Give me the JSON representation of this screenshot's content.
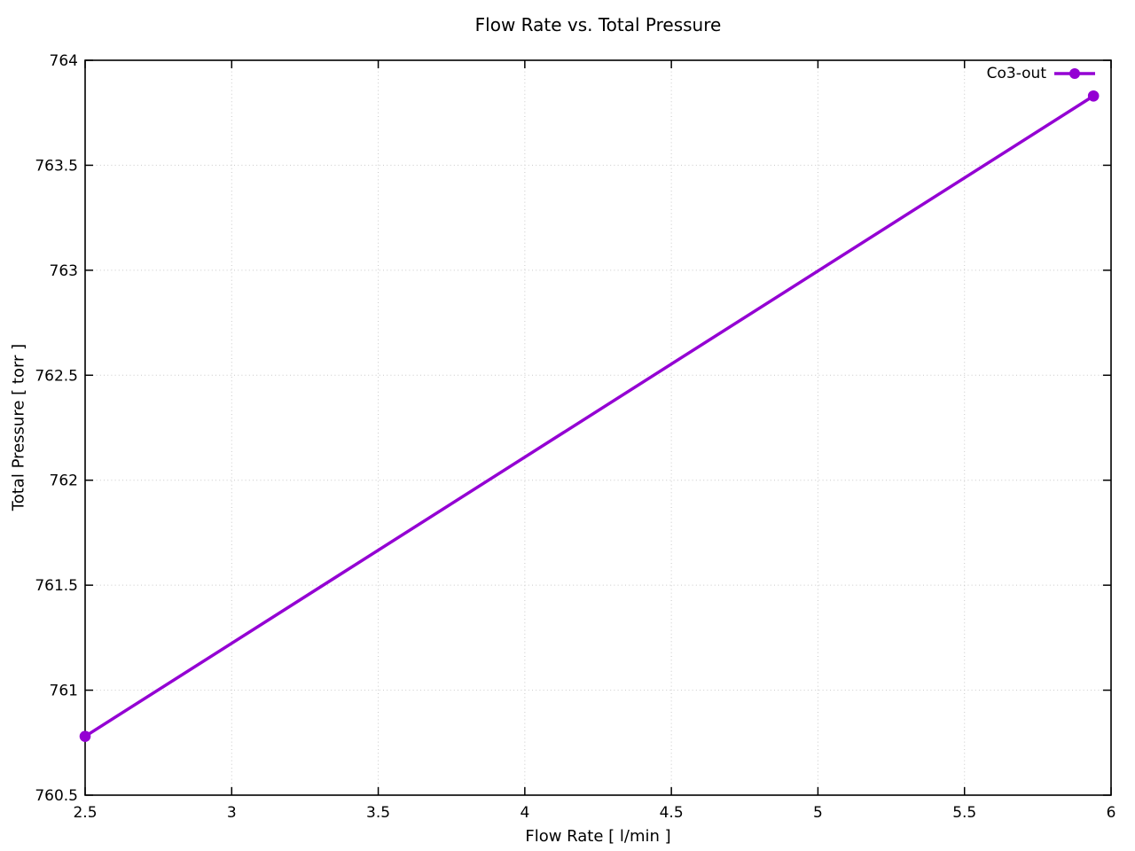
{
  "figure": {
    "title": "Flow Rate vs. Total Pressure"
  },
  "chart_data": {
    "type": "line",
    "title": "Flow Rate vs. Total Pressure",
    "xlabel": "Flow Rate [ l/min ]",
    "ylabel": "Total Pressure [ torr ]",
    "xlim": [
      2.5,
      6
    ],
    "ylim": [
      760.5,
      764
    ],
    "xticks": [
      2.5,
      3,
      3.5,
      4,
      4.5,
      5,
      5.5,
      6
    ],
    "yticks": [
      760.5,
      761,
      761.5,
      762,
      762.5,
      763,
      763.5,
      764
    ],
    "grid": true,
    "grid_style": "dotted",
    "legend_position": "top-right-inside",
    "series": [
      {
        "name": "Co3-out",
        "color": "#9400d3",
        "marker": "filled-circle",
        "points": [
          {
            "x": 2.5,
            "y": 760.78
          },
          {
            "x": 5.94,
            "y": 763.83
          }
        ]
      }
    ]
  },
  "colors": {
    "background": "#ffffff",
    "border": "#000000",
    "grid": "#c9c9c9",
    "text": "#000000"
  }
}
